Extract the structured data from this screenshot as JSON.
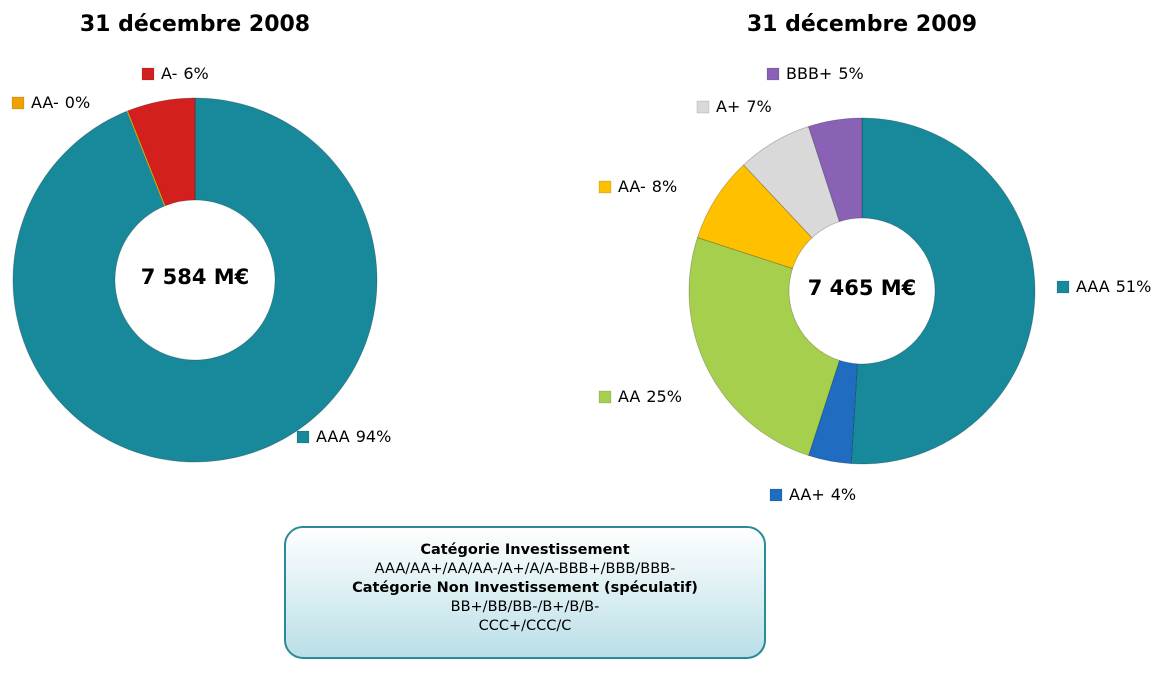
{
  "chart_data": [
    {
      "type": "pie",
      "donut": true,
      "title": "31 décembre 2008",
      "center_label": "7 584 M€",
      "categories": [
        "AAA",
        "AA-",
        "A-"
      ],
      "values": [
        94,
        0,
        6
      ],
      "value_labels": [
        "94%",
        "0%",
        "6%"
      ],
      "colors": [
        "#17899a",
        "#f0a000",
        "#d41f1f"
      ]
    },
    {
      "type": "pie",
      "donut": true,
      "title": "31 décembre 2009",
      "center_label": "7 465 M€",
      "categories": [
        "AAA",
        "AA+",
        "AA",
        "AA-",
        "A+",
        "BBB+"
      ],
      "values": [
        51,
        4,
        25,
        8,
        7,
        5
      ],
      "value_labels": [
        "51%",
        "4%",
        "25%",
        "8%",
        "7%",
        "5%"
      ],
      "colors": [
        "#17899a",
        "#1f6cc0",
        "#a6cf4e",
        "#ffc000",
        "#d9d9d9",
        "#8a62b5"
      ]
    }
  ],
  "note": {
    "lines": [
      "Catégorie Investissement",
      "AAA/AA+/AA/AA-/A+/A/A-BBB+/BBB/BBB-",
      "Catégorie Non Investissement (spéculatif)",
      "BB+/BB/BB-/B+/B/B-",
      "CCC+/CCC/C"
    ]
  }
}
